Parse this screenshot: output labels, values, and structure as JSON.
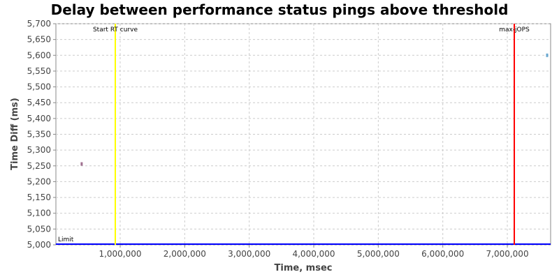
{
  "chart_data": {
    "type": "scatter",
    "title": "Delay between performance status pings above threshold",
    "xlabel": "Time, msec",
    "ylabel": "Time Diff (ms)",
    "xlim": [
      3600,
      7671000
    ],
    "ylim": [
      5000,
      5700
    ],
    "grid": true,
    "x_ticks": [
      1000000,
      2000000,
      3000000,
      4000000,
      5000000,
      6000000,
      7000000
    ],
    "x_tick_labels": [
      "1,000,000",
      "2,000,000",
      "3,000,000",
      "4,000,000",
      "5,000,000",
      "6,000,000",
      "7,000,000"
    ],
    "y_ticks": [
      5000,
      5050,
      5100,
      5150,
      5200,
      5250,
      5300,
      5350,
      5400,
      5450,
      5500,
      5550,
      5600,
      5650,
      5700
    ],
    "y_tick_labels": [
      "5,000",
      "5,050",
      "5,100",
      "5,150",
      "5,200",
      "5,250",
      "5,300",
      "5,350",
      "5,400",
      "5,450",
      "5,500",
      "5,550",
      "5,600",
      "5,650",
      "5,700"
    ],
    "points": [
      {
        "x": 403000,
        "y": 5256,
        "color": "#a07090"
      },
      {
        "x": 7617000,
        "y": 5600,
        "color": "#6aa8d0"
      }
    ],
    "markers": [
      {
        "label": "Start RT curve",
        "x": 924000,
        "color": "#ffff00"
      },
      {
        "label": "max-jOPS",
        "x": 7108000,
        "color": "#ff0000"
      }
    ],
    "threshold": {
      "label": "Limit",
      "y": 5000,
      "color": "#0000ff"
    }
  }
}
